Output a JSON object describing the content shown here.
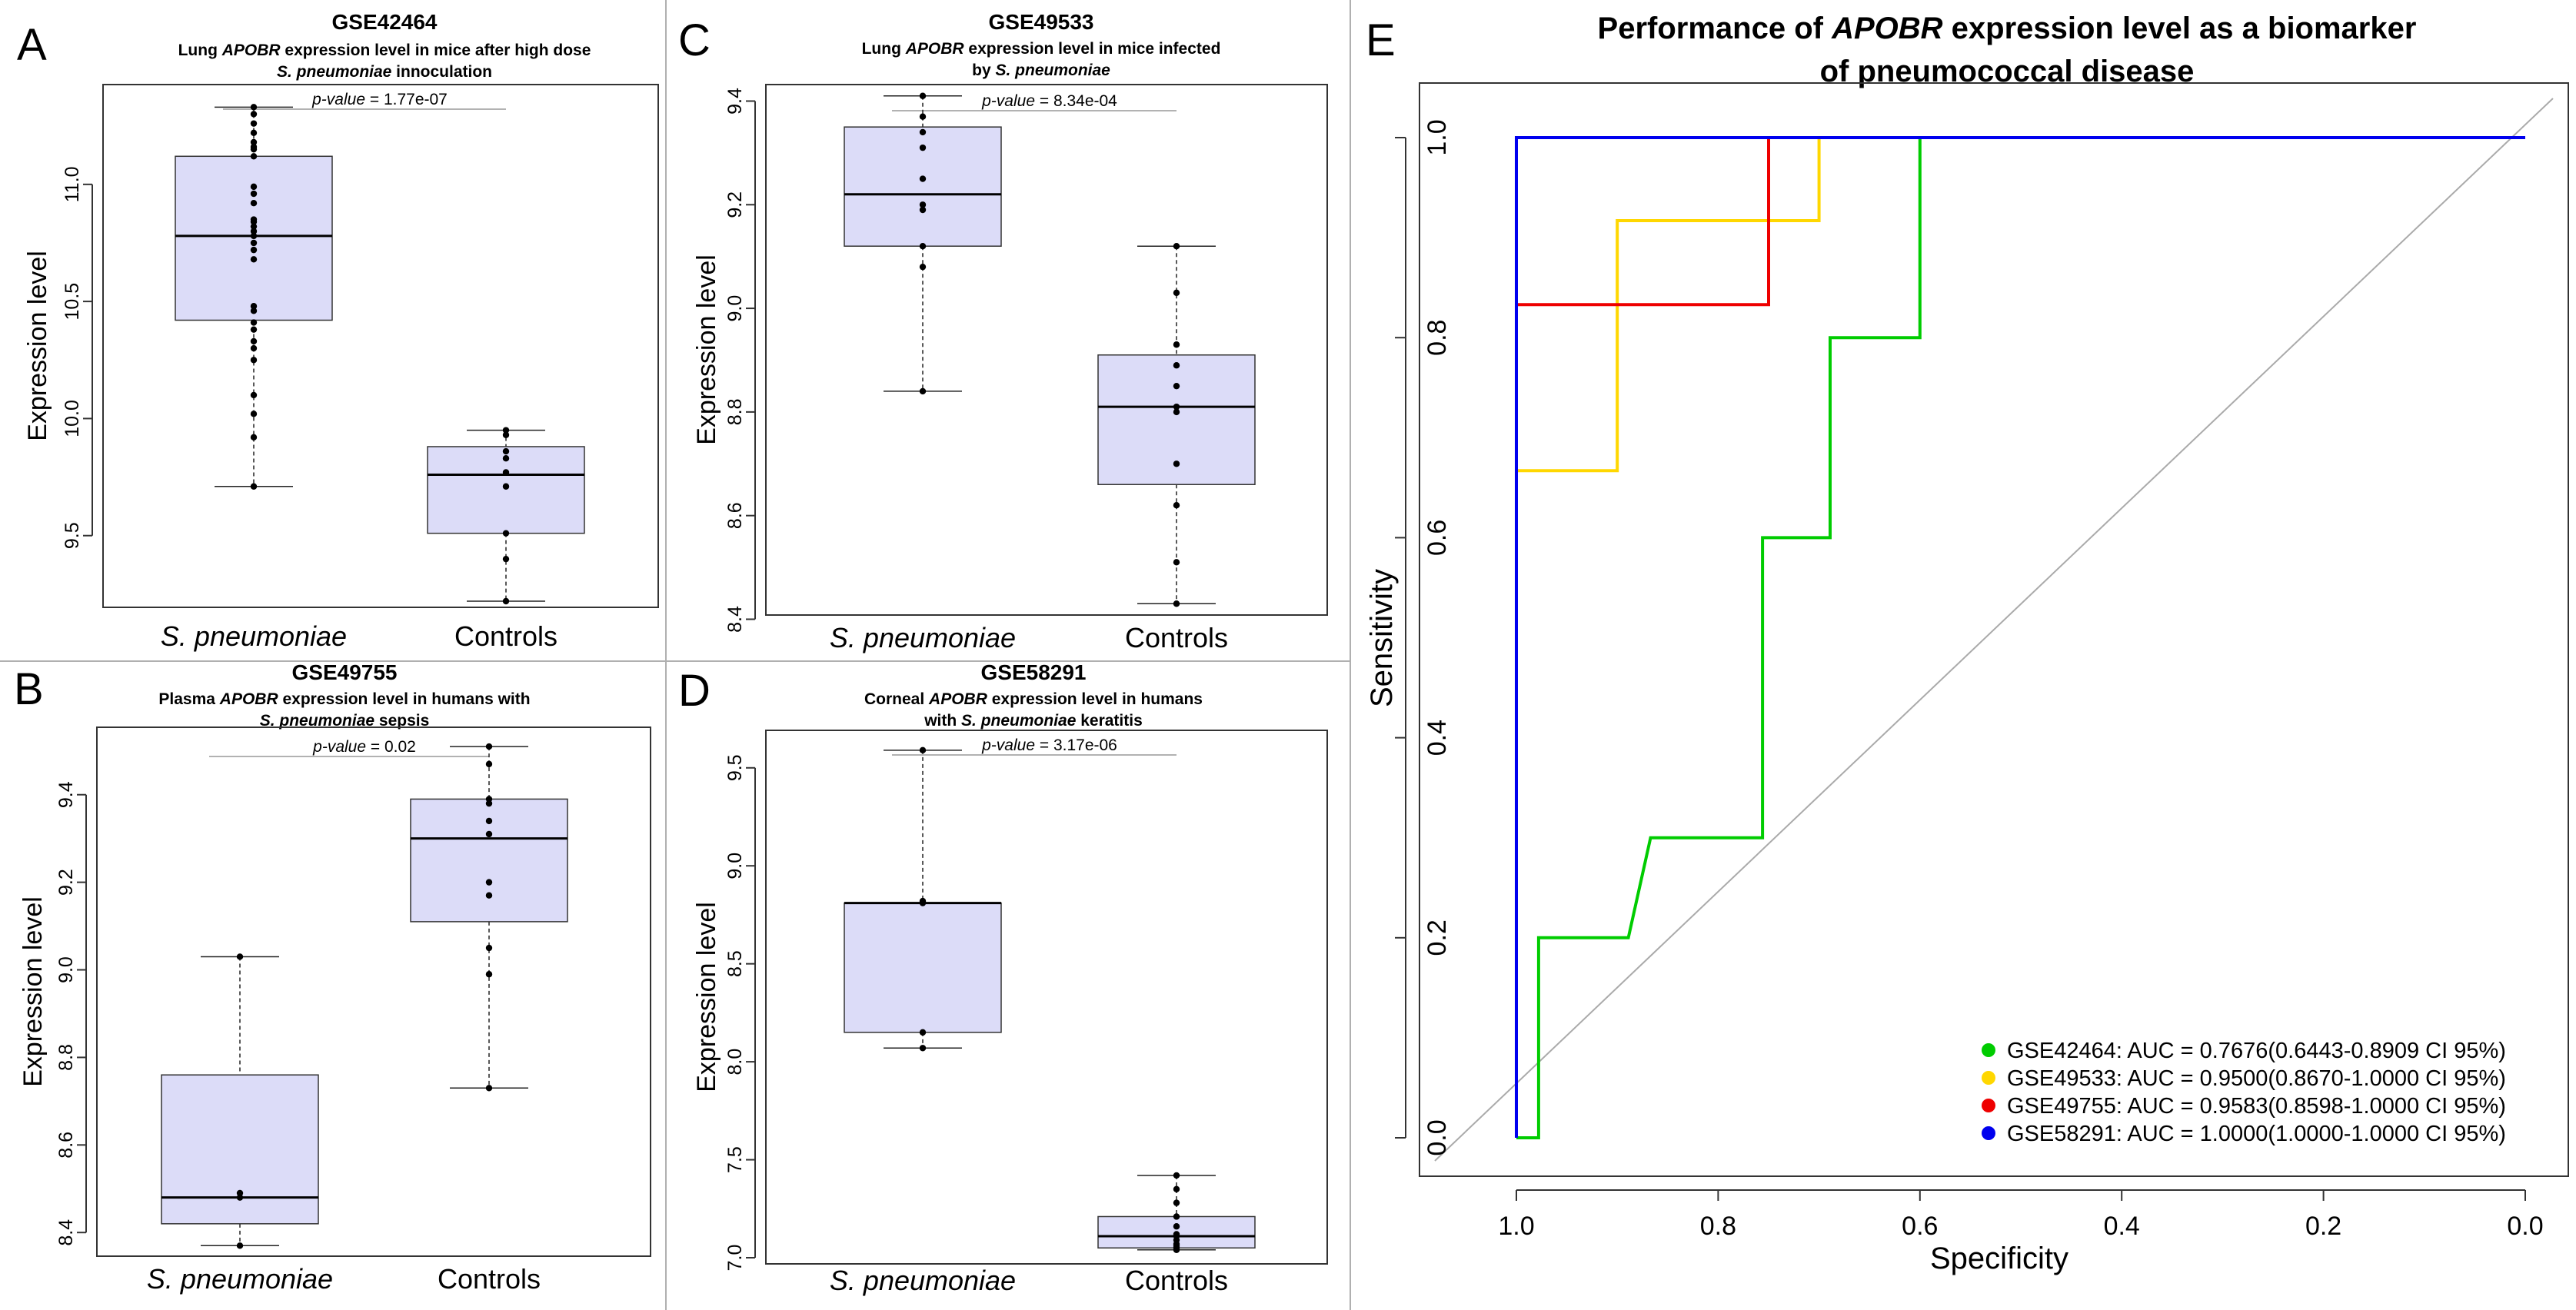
{
  "chart_data": [
    {
      "panel": "A",
      "type": "box",
      "dataset": "GSE42464",
      "subtitle": [
        "Lung ",
        "APOBR",
        " expression level in mice after high dose"
      ],
      "subtitle2": [
        "S. pneumoniae",
        " innoculation"
      ],
      "pvalue_label": "p-value",
      "pvalue_text": " = 1.77e-07",
      "ylabel": "Expression level",
      "ylim": [
        9.22,
        11.4
      ],
      "yticks": [
        9.5,
        10.0,
        10.5,
        11.0
      ],
      "ytick_labels": [
        "9.5",
        "10.0",
        "10.5",
        "11.0"
      ],
      "groups": [
        {
          "label": "S. pneumoniae",
          "italic": true,
          "min": 9.71,
          "q1": 10.42,
          "median": 10.78,
          "q3": 11.12,
          "max": 11.33,
          "points": [
            11.33,
            11.3,
            11.26,
            11.22,
            11.18,
            11.16,
            11.15,
            11.12,
            10.99,
            10.96,
            10.92,
            10.85,
            10.84,
            10.82,
            10.8,
            10.78,
            10.75,
            10.72,
            10.68,
            10.48,
            10.46,
            10.41,
            10.38,
            10.33,
            10.3,
            10.25,
            10.1,
            10.02,
            9.92,
            9.71
          ]
        },
        {
          "label": "Controls",
          "italic": false,
          "min": 9.22,
          "q1": 9.51,
          "median": 9.76,
          "q3": 9.88,
          "max": 9.95,
          "points": [
            9.95,
            9.93,
            9.86,
            9.83,
            9.77,
            9.71,
            9.51,
            9.4,
            9.22
          ]
        }
      ]
    },
    {
      "panel": "B",
      "type": "box",
      "dataset": "GSE49755",
      "subtitle": [
        "Plasma ",
        "APOBR",
        " expression level in humans with"
      ],
      "subtitle2": [
        "S. pneumoniae",
        "  sepsis"
      ],
      "pvalue_label": "p-value",
      "pvalue_text": " = 0.02",
      "ylabel": "Expression level",
      "ylim": [
        8.36,
        9.54
      ],
      "yticks": [
        8.4,
        8.6,
        8.8,
        9.0,
        9.2,
        9.4
      ],
      "ytick_labels": [
        "8.4",
        "8.6",
        "8.8",
        "9.0",
        "9.2",
        "9.4"
      ],
      "groups": [
        {
          "label": "S. pneumoniae",
          "italic": true,
          "min": 8.37,
          "q1": 8.42,
          "median": 8.48,
          "q3": 8.76,
          "max": 9.03,
          "points": [
            9.03,
            8.49,
            8.48,
            8.37
          ]
        },
        {
          "label": "Controls",
          "italic": false,
          "min": 8.73,
          "q1": 9.11,
          "median": 9.3,
          "q3": 9.39,
          "max": 9.51,
          "points": [
            9.51,
            9.47,
            9.39,
            9.38,
            9.34,
            9.31,
            9.2,
            9.17,
            9.05,
            8.99,
            8.73
          ]
        }
      ]
    },
    {
      "panel": "C",
      "type": "box",
      "dataset": "GSE49533",
      "subtitle": [
        "Lung ",
        "APOBR",
        " expression level  in mice infected"
      ],
      "subtitle2": [
        "by ",
        "S. pneumoniae",
        ""
      ],
      "subtitle2_italic_index": 1,
      "pvalue_label": "p-value",
      "pvalue_text": " = 8.34e-04",
      "ylabel": "Expression level",
      "ylim": [
        8.42,
        9.42
      ],
      "yticks": [
        8.4,
        8.6,
        8.8,
        9.0,
        9.2,
        9.4
      ],
      "ytick_labels": [
        "8.4",
        "8.6",
        "8.8",
        "9.0",
        "9.2",
        "9.4"
      ],
      "groups": [
        {
          "label": "S. pneumoniae",
          "italic": true,
          "min": 8.84,
          "q1": 9.12,
          "median": 9.22,
          "q3": 9.35,
          "max": 9.41,
          "points": [
            9.41,
            9.37,
            9.34,
            9.31,
            9.25,
            9.2,
            9.19,
            9.12,
            9.08,
            8.84
          ]
        },
        {
          "label": "Controls",
          "italic": false,
          "min": 8.43,
          "q1": 8.66,
          "median": 8.81,
          "q3": 8.91,
          "max": 9.12,
          "points": [
            9.12,
            9.03,
            8.93,
            8.89,
            8.85,
            8.81,
            8.8,
            8.7,
            8.62,
            8.51,
            8.43
          ]
        }
      ]
    },
    {
      "panel": "D",
      "type": "box",
      "dataset": "GSE58291",
      "subtitle": [
        "Corneal ",
        "APOBR",
        " expression level in humans"
      ],
      "subtitle2": [
        "with  ",
        "S. pneumoniae",
        " keratitis"
      ],
      "subtitle2_italic_index": 1,
      "pvalue_label": "p-value",
      "pvalue_text": " = 3.17e-06",
      "ylabel": "Expression level",
      "ylim": [
        7.0,
        9.66
      ],
      "yticks": [
        7.0,
        7.5,
        8.0,
        8.5,
        9.0,
        9.5
      ],
      "ytick_labels": [
        "7.0",
        "7.5",
        "8.0",
        "8.5",
        "9.0",
        "9.5"
      ],
      "groups": [
        {
          "label": "S. pneumoniae",
          "italic": true,
          "min": 8.07,
          "q1": 8.15,
          "median": 8.81,
          "q3": 8.81,
          "max": 9.59,
          "points": [
            9.59,
            8.82,
            8.81,
            8.15,
            8.07
          ]
        },
        {
          "label": "Controls",
          "italic": false,
          "min": 7.04,
          "q1": 7.05,
          "median": 7.11,
          "q3": 7.21,
          "max": 7.42,
          "points": [
            7.42,
            7.35,
            7.28,
            7.21,
            7.16,
            7.12,
            7.11,
            7.09,
            7.07,
            7.06,
            7.05,
            7.05,
            7.04
          ]
        }
      ]
    },
    {
      "panel": "E",
      "type": "line",
      "title_line1": [
        "Performance of ",
        "APOBR",
        " expression level as a biomarker"
      ],
      "title_line2": "of pneumococcal disease",
      "xlabel": "Specificity",
      "ylabel": "Sensitivity",
      "xlim": [
        1.0,
        0.0
      ],
      "ylim": [
        0.0,
        1.0
      ],
      "xticks": [
        1.0,
        0.8,
        0.6,
        0.4,
        0.2,
        0.0
      ],
      "xtick_labels": [
        "1.0",
        "0.8",
        "0.6",
        "0.4",
        "0.2",
        "0.0"
      ],
      "yticks": [
        0.0,
        0.2,
        0.4,
        0.6,
        0.8,
        1.0
      ],
      "ytick_labels": [
        "0.0",
        "0.2",
        "0.4",
        "0.6",
        "0.8",
        "1.0"
      ],
      "diagonal": true,
      "legend_position": "bottom-right",
      "series": [
        {
          "name": "GSE42464",
          "label": "GSE42464: AUC = 0.7676(0.6443-0.8909 CI 95%)",
          "color": "#00cc00",
          "points": [
            [
              1.0,
              0.0
            ],
            [
              0.978,
              0.0
            ],
            [
              0.978,
              0.2
            ],
            [
              0.889,
              0.2
            ],
            [
              0.867,
              0.3
            ],
            [
              0.756,
              0.3
            ],
            [
              0.756,
              0.6
            ],
            [
              0.689,
              0.6
            ],
            [
              0.689,
              0.8
            ],
            [
              0.6,
              0.8
            ],
            [
              0.6,
              1.0
            ],
            [
              0.0,
              1.0
            ]
          ]
        },
        {
          "name": "GSE49533",
          "label": "GSE49533: AUC = 0.9500(0.8670-1.0000 CI 95%)",
          "color": "#ffd700",
          "points": [
            [
              1.0,
              0.0
            ],
            [
              1.0,
              0.667
            ],
            [
              0.9,
              0.667
            ],
            [
              0.9,
              0.917
            ],
            [
              0.7,
              0.917
            ],
            [
              0.7,
              1.0
            ],
            [
              0.0,
              1.0
            ]
          ]
        },
        {
          "name": "GSE49755",
          "label": "GSE49755: AUC = 0.9583(0.8598-1.0000 CI 95%)",
          "color": "#ee0000",
          "points": [
            [
              1.0,
              0.0
            ],
            [
              1.0,
              0.833
            ],
            [
              0.75,
              0.833
            ],
            [
              0.75,
              1.0
            ],
            [
              0.0,
              1.0
            ]
          ]
        },
        {
          "name": "GSE58291",
          "label": "GSE58291: AUC = 1.0000(1.0000-1.0000 CI 95%)",
          "color": "#0000ee",
          "points": [
            [
              1.0,
              0.0
            ],
            [
              1.0,
              1.0
            ],
            [
              0.0,
              1.0
            ]
          ]
        }
      ]
    }
  ]
}
